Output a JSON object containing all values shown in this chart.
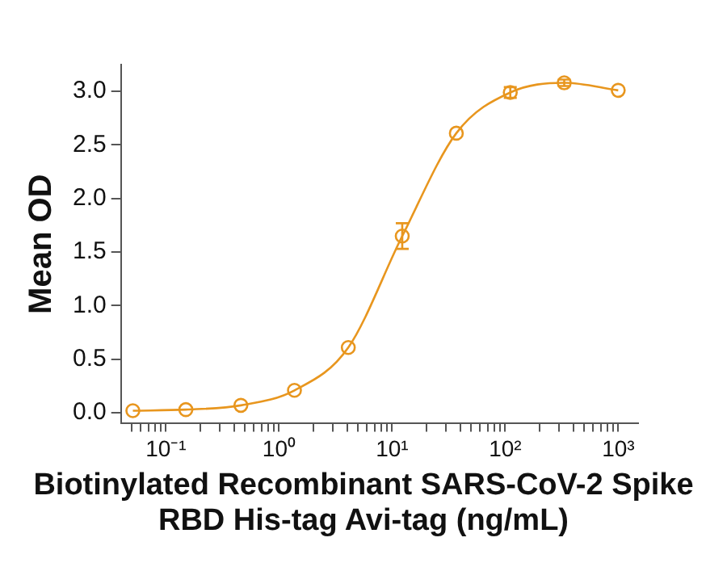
{
  "chart_data": {
    "type": "line",
    "xlabel": "Biotinylated Recombinant SARS-CoV-2 Spike RBD His-tag Avi-tag (ng/mL)",
    "ylabel": "Mean OD",
    "log": "x",
    "grid": false,
    "marker": "circle",
    "line_style": "solid",
    "xlim": [
      0.04,
      1500
    ],
    "ylim": [
      -0.1,
      3.25
    ],
    "xticks": [
      {
        "value": 0.05,
        "label": null
      },
      {
        "value": 0.06,
        "label": null
      },
      {
        "value": 0.07,
        "label": null
      },
      {
        "value": 0.08,
        "label": null
      },
      {
        "value": 0.09,
        "label": null
      },
      {
        "value": 0.1,
        "label": "10⁻¹"
      },
      {
        "value": 0.2,
        "label": null
      },
      {
        "value": 0.3,
        "label": null
      },
      {
        "value": 0.4,
        "label": null
      },
      {
        "value": 0.5,
        "label": null
      },
      {
        "value": 0.6,
        "label": null
      },
      {
        "value": 0.7,
        "label": null
      },
      {
        "value": 0.8,
        "label": null
      },
      {
        "value": 0.9,
        "label": null
      },
      {
        "value": 1,
        "label": "10⁰"
      },
      {
        "value": 2,
        "label": null
      },
      {
        "value": 3,
        "label": null
      },
      {
        "value": 4,
        "label": null
      },
      {
        "value": 5,
        "label": null
      },
      {
        "value": 6,
        "label": null
      },
      {
        "value": 7,
        "label": null
      },
      {
        "value": 8,
        "label": null
      },
      {
        "value": 9,
        "label": null
      },
      {
        "value": 10,
        "label": "10¹"
      },
      {
        "value": 20,
        "label": null
      },
      {
        "value": 30,
        "label": null
      },
      {
        "value": 40,
        "label": null
      },
      {
        "value": 50,
        "label": null
      },
      {
        "value": 60,
        "label": null
      },
      {
        "value": 70,
        "label": null
      },
      {
        "value": 80,
        "label": null
      },
      {
        "value": 90,
        "label": null
      },
      {
        "value": 100,
        "label": "10²"
      },
      {
        "value": 200,
        "label": null
      },
      {
        "value": 300,
        "label": null
      },
      {
        "value": 400,
        "label": null
      },
      {
        "value": 500,
        "label": null
      },
      {
        "value": 600,
        "label": null
      },
      {
        "value": 700,
        "label": null
      },
      {
        "value": 800,
        "label": null
      },
      {
        "value": 900,
        "label": null
      },
      {
        "value": 1000,
        "label": "10³"
      }
    ],
    "yticks": [
      {
        "value": 0,
        "label": "0.0"
      },
      {
        "value": 0.5,
        "label": "0.5"
      },
      {
        "value": 1,
        "label": "1.0"
      },
      {
        "value": 1.5,
        "label": "1.5"
      },
      {
        "value": 2,
        "label": "2.0"
      },
      {
        "value": 2.5,
        "label": "2.5"
      },
      {
        "value": 3,
        "label": "3.0"
      }
    ],
    "x": [
      0.051,
      0.15,
      0.46,
      1.37,
      4.1,
      12.3,
      37,
      111,
      333,
      1000
    ],
    "series": [
      {
        "color": "#e8961e",
        "values": [
          0.02,
          0.03,
          0.07,
          0.21,
          0.61,
          1.65,
          2.61,
          2.99,
          3.08,
          3.01
        ],
        "errors": [
          null,
          null,
          null,
          null,
          null,
          0.12,
          null,
          0.05,
          0.03,
          null
        ]
      }
    ]
  }
}
